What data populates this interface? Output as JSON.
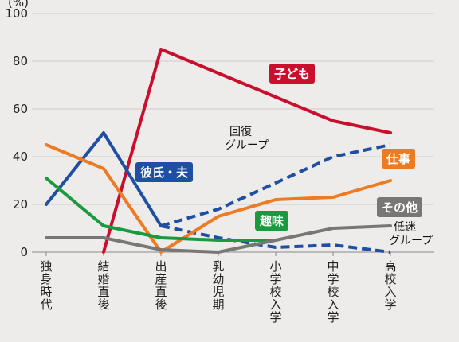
{
  "chart_data": {
    "type": "line",
    "unit_label": "(%)",
    "ylim": [
      0,
      100
    ],
    "yticks": [
      0,
      20,
      40,
      60,
      80,
      100
    ],
    "grid": true,
    "categories": [
      "独身時代",
      "結婚直後",
      "出産直後",
      "乳幼児期",
      "小学校入学",
      "中学校入学",
      "高校入学"
    ],
    "series": [
      {
        "name": "子ども",
        "color": "#c8102e",
        "dashed": false,
        "badge": true,
        "values": [
          null,
          0,
          85,
          75,
          65,
          55,
          50
        ]
      },
      {
        "name": "彼氏・夫",
        "color": "#1f4fa3",
        "dashed": false,
        "badge": true,
        "values": [
          20,
          50,
          11,
          null,
          null,
          null,
          null
        ]
      },
      {
        "name": "回復グループ",
        "label_lines": [
          "回復",
          "グループ"
        ],
        "color": "#1f4fa3",
        "dashed": true,
        "badge": false,
        "values": [
          null,
          null,
          11,
          18,
          29,
          40,
          45
        ]
      },
      {
        "name": "低迷グループ",
        "label_lines": [
          "低迷",
          "グループ"
        ],
        "color": "#1f4fa3",
        "dashed": true,
        "badge": false,
        "values": [
          null,
          null,
          11,
          6,
          2,
          3,
          0
        ]
      },
      {
        "name": "仕事",
        "color": "#ee7a22",
        "dashed": false,
        "badge": true,
        "values": [
          45,
          35,
          0,
          15,
          22,
          23,
          30
        ]
      },
      {
        "name": "趣味",
        "color": "#1a9a3e",
        "dashed": false,
        "badge": true,
        "values": [
          31,
          11,
          6,
          5,
          5,
          null,
          null
        ]
      },
      {
        "name": "その他",
        "color": "#777777",
        "dashed": false,
        "badge": true,
        "values": [
          6,
          6,
          1,
          0,
          5,
          10,
          11
        ]
      }
    ]
  }
}
